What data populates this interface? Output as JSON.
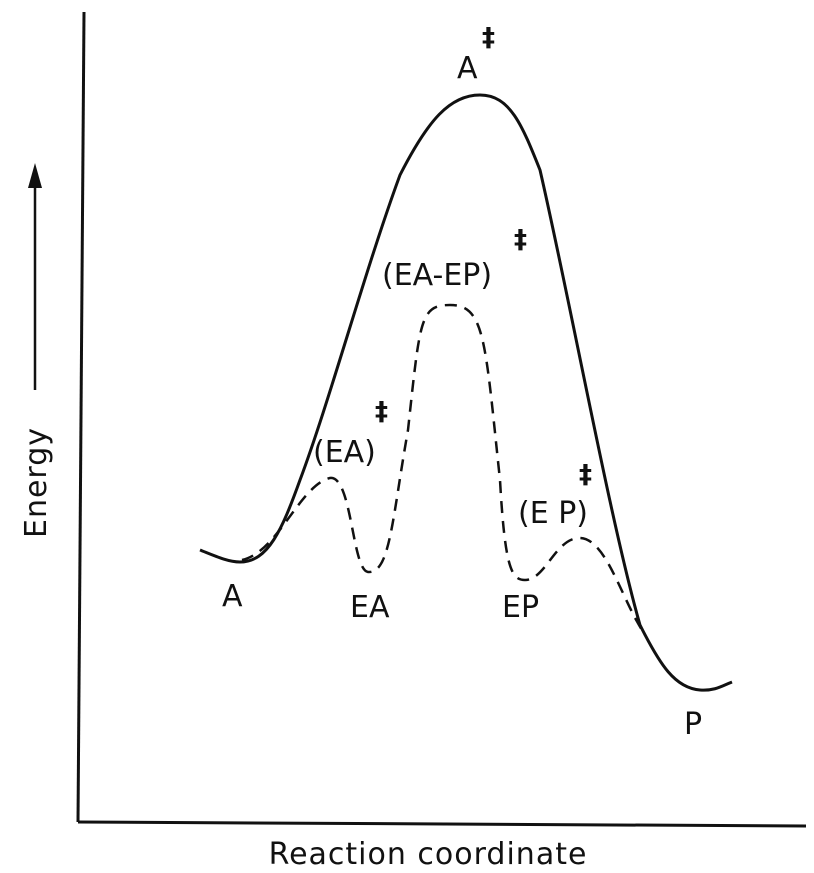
{
  "diagram": {
    "axes": {
      "y_label": "Energy",
      "x_label": "Reaction coordinate"
    },
    "uncatalyzed_path": {
      "style": "solid",
      "start_label": "A",
      "transition_state": "A",
      "transition_mark": "‡",
      "end_label": "P"
    },
    "catalyzed_path": {
      "style": "dashed",
      "intermediates": {
        "ea": "EA",
        "ep": "EP"
      },
      "transition_states": {
        "ea_ts": "(EA)",
        "eaep_ts": "(EA-EP)",
        "ep_ts": "(E P)"
      },
      "transition_mark": "‡"
    },
    "colors": {
      "ink": "#111111",
      "background": "#ffffff"
    }
  }
}
